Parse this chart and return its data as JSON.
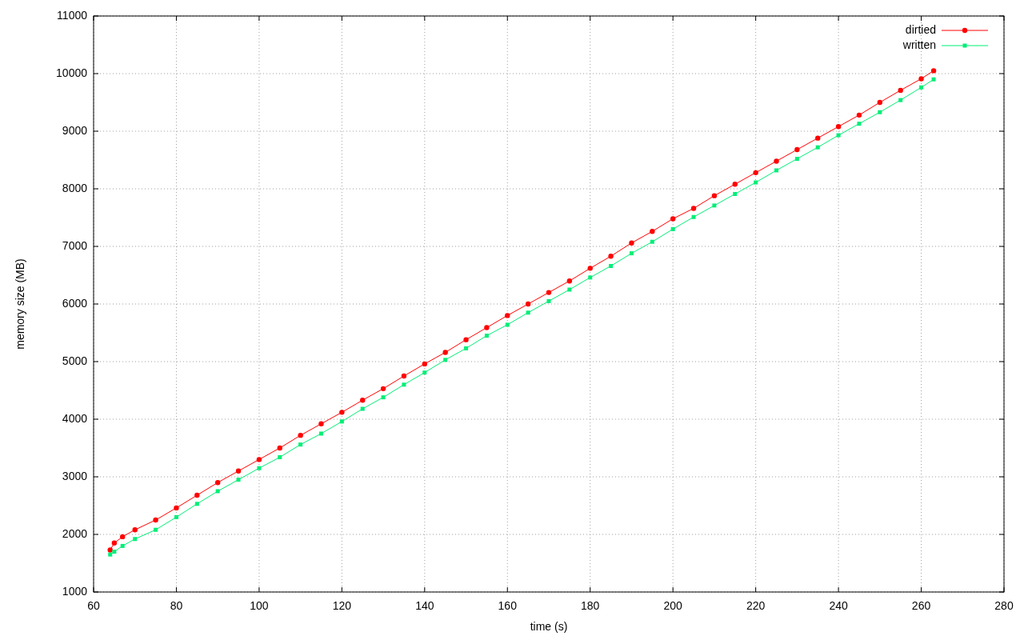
{
  "chart_data": {
    "type": "line",
    "xlabel": "time (s)",
    "ylabel": "memory size (MB)",
    "x": [
      64,
      65,
      67,
      70,
      75,
      80,
      85,
      90,
      95,
      100,
      105,
      110,
      115,
      120,
      125,
      130,
      135,
      140,
      145,
      150,
      155,
      160,
      165,
      170,
      175,
      180,
      185,
      190,
      195,
      200,
      205,
      210,
      215,
      220,
      225,
      230,
      235,
      240,
      245,
      250,
      255,
      260,
      263
    ],
    "series": [
      {
        "name": "dirtied",
        "color": "#ff0000",
        "marker": "circle",
        "values": [
          1730,
          1850,
          1960,
          2080,
          2250,
          2460,
          2680,
          2900,
          3100,
          3300,
          3500,
          3720,
          3920,
          4120,
          4330,
          4530,
          4750,
          4960,
          5160,
          5380,
          5590,
          5800,
          6000,
          6200,
          6400,
          6620,
          6830,
          7060,
          7260,
          7480,
          7660,
          7880,
          8080,
          8280,
          8480,
          8680,
          8880,
          9080,
          9280,
          9500,
          9710,
          9910,
          10050
        ]
      },
      {
        "name": "written",
        "color": "#00ee77",
        "marker": "square",
        "values": [
          1650,
          1700,
          1800,
          1920,
          2080,
          2300,
          2530,
          2750,
          2950,
          3150,
          3340,
          3560,
          3750,
          3960,
          4180,
          4380,
          4600,
          4810,
          5030,
          5230,
          5450,
          5640,
          5850,
          6050,
          6250,
          6460,
          6660,
          6880,
          7080,
          7300,
          7510,
          7710,
          7910,
          8110,
          8320,
          8520,
          8720,
          8930,
          9130,
          9330,
          9540,
          9760,
          9900
        ]
      }
    ],
    "xlim": [
      60,
      280
    ],
    "xticks": [
      60,
      80,
      100,
      120,
      140,
      160,
      180,
      200,
      220,
      240,
      260,
      280
    ],
    "ylim": [
      1000,
      11000
    ],
    "yticks": [
      1000,
      2000,
      3000,
      4000,
      5000,
      6000,
      7000,
      8000,
      9000,
      10000,
      11000
    ],
    "grid": true,
    "legend": "top right",
    "line_style": "solid"
  }
}
